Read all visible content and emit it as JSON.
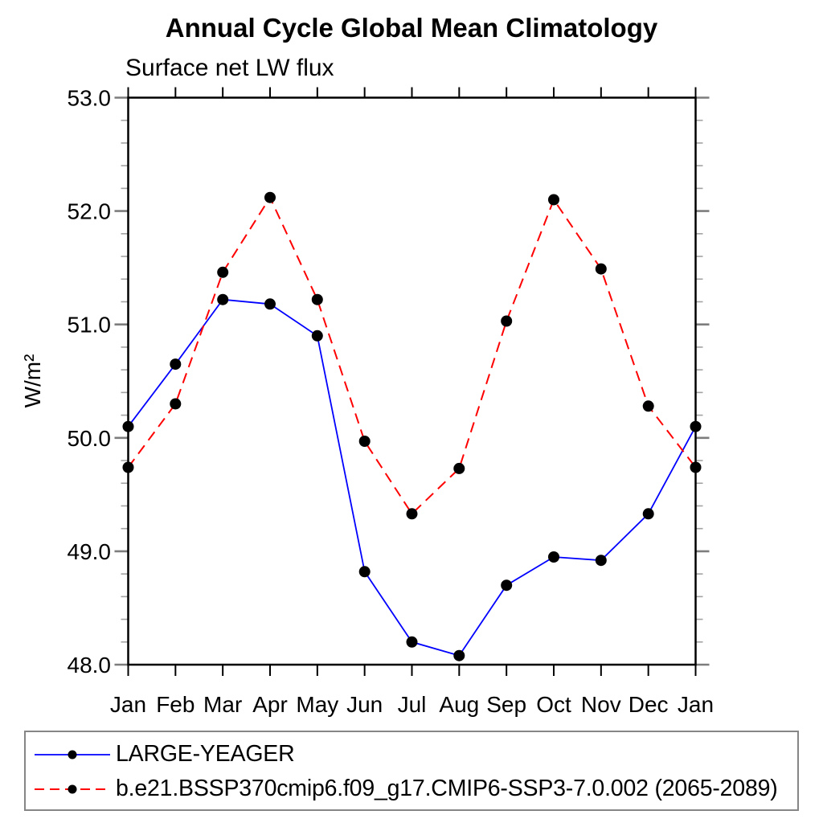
{
  "chart_data": {
    "type": "line",
    "title": "Annual Cycle Global Mean Climatology",
    "subtitle": "Surface net LW flux",
    "ylabel": "W/m²",
    "xlabel": "",
    "categories": [
      "Jan",
      "Feb",
      "Mar",
      "Apr",
      "May",
      "Jun",
      "Jul",
      "Aug",
      "Sep",
      "Oct",
      "Nov",
      "Dec",
      "Jan"
    ],
    "ylim": [
      48.0,
      53.0
    ],
    "yticks": [
      48.0,
      49.0,
      50.0,
      51.0,
      52.0,
      53.0
    ],
    "ytick_labels": [
      "48.0",
      "49.0",
      "50.0",
      "51.0",
      "52.0",
      "53.0"
    ],
    "ytick_minor_step": 0.2,
    "grid": false,
    "legend_position": "bottom-box",
    "marker": "filled-circle",
    "marker_color": "#000000",
    "series": [
      {
        "name": "LARGE-YEAGER",
        "color": "#0000ff",
        "line_style": "solid",
        "values": [
          50.1,
          50.65,
          51.22,
          51.18,
          50.9,
          48.82,
          48.2,
          48.08,
          48.7,
          48.95,
          48.92,
          49.33,
          50.1
        ]
      },
      {
        "name": "b.e21.BSSP370cmip6.f09_g17.CMIP6-SSP3-7.0.002 (2065-2089)",
        "color": "#ff0000",
        "line_style": "dashed",
        "values": [
          49.74,
          50.3,
          51.46,
          52.12,
          51.22,
          49.97,
          49.33,
          49.73,
          51.03,
          52.1,
          51.49,
          50.28,
          49.74
        ]
      }
    ]
  },
  "colors": {
    "axis_box": "#000000",
    "major_tick": "#7d7d7d",
    "minor_tick": "#a3a3a3",
    "legend_border": "#868686",
    "background": "#ffffff"
  }
}
